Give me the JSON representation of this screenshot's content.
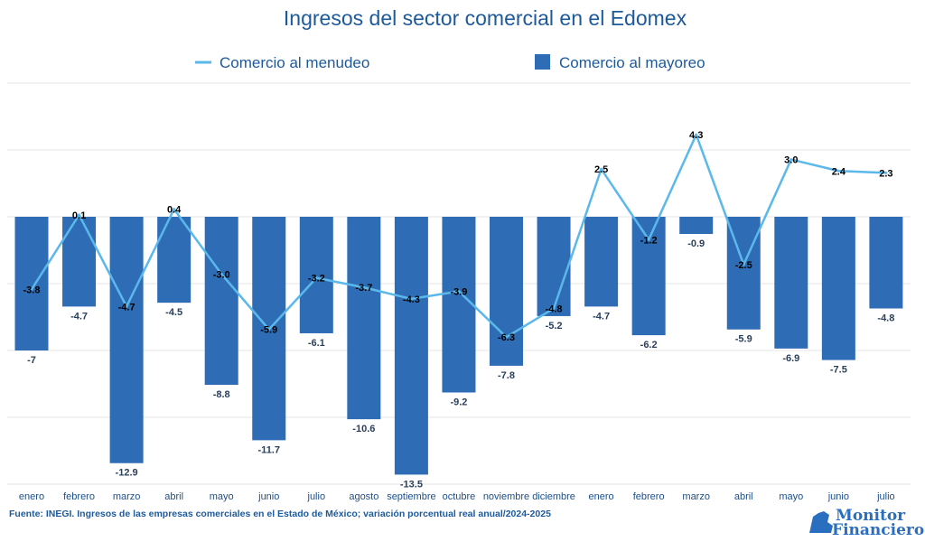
{
  "chart_data": {
    "type": "bar+line",
    "title": "Ingresos del sector comercial en el Edomex",
    "categories": [
      "enero",
      "febrero",
      "marzo",
      "abril",
      "mayo",
      "junio",
      "julio",
      "agosto",
      "septiembre",
      "octubre",
      "noviembre",
      "diciembre",
      "enero",
      "febrero",
      "marzo",
      "abril",
      "mayo",
      "junio",
      "julio"
    ],
    "series": [
      {
        "name": "Comercio al menudeo",
        "kind": "line",
        "color": "#5bb8ea",
        "values": [
          -3.8,
          0.1,
          -4.7,
          0.4,
          -3.0,
          -5.9,
          -3.2,
          -3.7,
          -4.3,
          -3.9,
          -6.3,
          -4.8,
          2.5,
          -1.2,
          4.3,
          -2.5,
          3.0,
          2.4,
          2.3
        ],
        "labels": [
          "-3.8",
          "0.1",
          "-4.7",
          "0.4",
          "-3.0",
          "-5.9",
          "-3.2",
          "-3.7",
          "-4.3",
          "-3.9",
          "-6.3",
          "-4.8",
          "2.5",
          "-1.2",
          "4.3",
          "-2.5",
          "3.0",
          "2.4",
          "2.3"
        ]
      },
      {
        "name": "Comercio al mayoreo",
        "kind": "bar",
        "color": "#2e6cb5",
        "values": [
          -7,
          -4.7,
          -12.9,
          -4.5,
          -8.8,
          -11.7,
          -6.1,
          -10.6,
          -13.5,
          -9.2,
          -7.8,
          -5.2,
          -4.7,
          -6.2,
          -0.9,
          -5.9,
          -6.9,
          -7.5,
          -4.8
        ],
        "labels": [
          "-7",
          "-4.7",
          "-12.9",
          "-4.5",
          "-8.8",
          "-11.7",
          "-6.1",
          "-10.6",
          "-13.5",
          "-9.2",
          "-7.8",
          "-5.2",
          "-4.7",
          "-6.2",
          "-0.9",
          "-5.9",
          "-6.9",
          "-7.5",
          "-4.8"
        ]
      }
    ],
    "ylim": [
      -14,
      7
    ],
    "grid": true,
    "legend_position": "top-center",
    "xlabel": "",
    "ylabel": ""
  },
  "source": "Fuente: INEGI. Ingresos de las empresas comerciales en el Estado de México; variación porcentual real anual/2024-2025",
  "logo": {
    "line1": "Monitor",
    "line2": "Financiero"
  }
}
